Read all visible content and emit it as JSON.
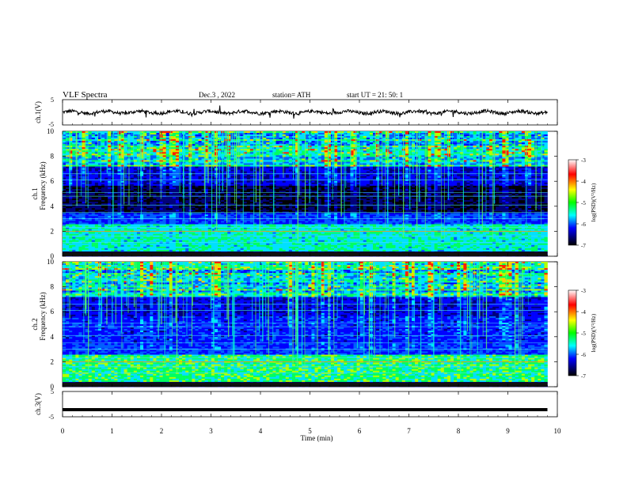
{
  "header": {
    "title": "VLF  Spectra",
    "date": "Dec.3  , 2022",
    "station": "station= ATH",
    "start": "start  UT  =    21: 50: 1"
  },
  "chart_data": [
    {
      "type": "line",
      "panel": "ch1-waveform",
      "ylabel": "ch.1(V)",
      "ylim": [
        -5,
        5
      ],
      "yticks": [
        "5",
        "-5"
      ],
      "xlim": [
        0,
        10
      ],
      "note_level": 0
    },
    {
      "type": "heatmap",
      "panel": "ch1-spectrogram",
      "ylabel_line1": "ch.1",
      "ylabel_line2": "Frequency  (kHz)",
      "ylim": [
        0,
        10
      ],
      "yticks": [
        "0",
        "2",
        "4",
        "6",
        "8",
        "10"
      ],
      "xlim": [
        0,
        9.8
      ],
      "colorbar": {
        "label": "log(PSD)(V²/Hz)",
        "range": [
          -7,
          -3
        ],
        "ticks": [
          "-3",
          "-4",
          "-5",
          "-6",
          "-7"
        ],
        "colors": [
          "#ffffff",
          "#ff0000",
          "#ffff00",
          "#00ff00",
          "#00ffff",
          "#0000ff",
          "#000000"
        ]
      }
    },
    {
      "type": "heatmap",
      "panel": "ch2-spectrogram",
      "ylabel_line1": "ch.2",
      "ylabel_line2": "Frequency  (kHz)",
      "ylim": [
        0,
        10
      ],
      "yticks": [
        "0",
        "2",
        "4",
        "6",
        "8",
        "10"
      ],
      "xlim": [
        0,
        9.8
      ],
      "colorbar": {
        "label": "log(PSD)(V²/Hz)",
        "range": [
          -7,
          -3
        ],
        "ticks": [
          "-3",
          "-4",
          "-5",
          "-6",
          "-7"
        ],
        "colors": [
          "#ffffff",
          "#ff0000",
          "#ffff00",
          "#00ff00",
          "#00ffff",
          "#0000ff",
          "#000000"
        ]
      }
    },
    {
      "type": "line",
      "panel": "ch3-waveform",
      "ylabel": "ch.3(V)",
      "ylim": [
        -5,
        5
      ],
      "yticks": [
        "5",
        "-5"
      ],
      "xlim": [
        0,
        10
      ],
      "level": -2.2,
      "xlabel": "Time  (min)",
      "xticks": [
        "0",
        "1",
        "2",
        "3",
        "4",
        "5",
        "6",
        "7",
        "8",
        "9",
        "10"
      ]
    }
  ]
}
